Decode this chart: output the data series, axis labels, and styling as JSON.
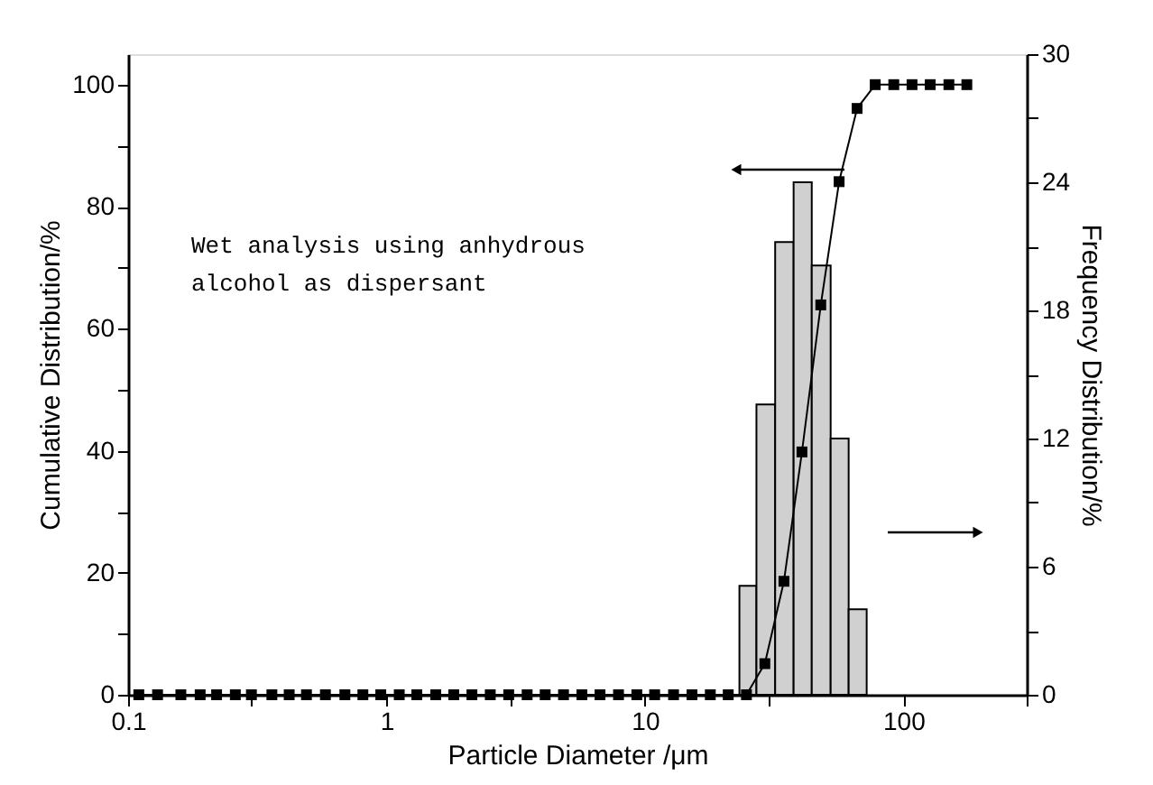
{
  "chart_data": {
    "type": "histogram",
    "xlabel": "Particle Diameter /μm",
    "ylabel": "Cumulative Distribution/%",
    "y2label": "Frequency Distribution/%",
    "log": "x",
    "grid": false,
    "xlim": [
      0.1,
      300
    ],
    "xticks": [
      0.1,
      {
        "value": 0.3,
        "label": null
      },
      1,
      {
        "value": 3,
        "label": null
      },
      10,
      {
        "value": 30,
        "label": null
      },
      100,
      {
        "value": 300,
        "label": null
      }
    ],
    "ylim": [
      0,
      105
    ],
    "yticks": [
      0,
      {
        "value": 10,
        "label": null
      },
      20,
      {
        "value": 30,
        "label": null
      },
      40,
      {
        "value": 50,
        "label": null
      },
      60,
      {
        "value": 70,
        "label": null
      },
      80,
      {
        "value": 90,
        "label": null
      },
      100
    ],
    "y2lim": [
      0,
      30
    ],
    "y2ticks": [
      0,
      {
        "value": 3,
        "label": null
      },
      6,
      {
        "value": 9,
        "label": null
      },
      12,
      {
        "value": 15,
        "label": null
      },
      18,
      {
        "value": 21,
        "label": null
      },
      24,
      {
        "value": 27,
        "label": null
      },
      30
    ],
    "annotations": [
      "Wet analysis using anhydrous alcohol as dispersant"
    ],
    "series": [
      {
        "type": "histogram",
        "axis": "y2",
        "color": "#d0d0d0",
        "bins": [
          23.2,
          27.0,
          31.9,
          37.6,
          44.2,
          52.3,
          61.4,
          72.1
        ],
        "values": [
          5.1,
          13.6,
          21.2,
          24.0,
          20.1,
          12.0,
          4.0
        ]
      },
      {
        "type": "line",
        "axis": "y",
        "color": "#000000",
        "marker": "square",
        "line_style": "solid",
        "x": [
          0.11,
          0.13,
          0.16,
          0.19,
          0.22,
          0.26,
          0.3,
          0.36,
          0.42,
          0.49,
          0.58,
          0.69,
          0.81,
          0.95,
          1.12,
          1.31,
          1.55,
          1.82,
          2.14,
          2.52,
          2.97,
          3.5,
          4.11,
          4.84,
          5.7,
          6.7,
          7.9,
          9.3,
          10.9,
          12.9,
          15.2,
          17.9,
          21.0,
          24.7,
          29.1,
          34.5,
          40.5,
          47.9,
          56.4,
          66.2,
          77.8,
          91.8,
          108,
          127,
          150,
          176
        ],
        "values": [
          0,
          0,
          0,
          0,
          0,
          0,
          0,
          0,
          0,
          0,
          0,
          0,
          0,
          0,
          0,
          0,
          0,
          0,
          0,
          0,
          0,
          0,
          0,
          0,
          0,
          0,
          0,
          0,
          0,
          0,
          0,
          0,
          0,
          0,
          5.1,
          18.6,
          39.8,
          63.9,
          84.1,
          96.1,
          100,
          100,
          100,
          100,
          100,
          100
        ]
      }
    ]
  }
}
